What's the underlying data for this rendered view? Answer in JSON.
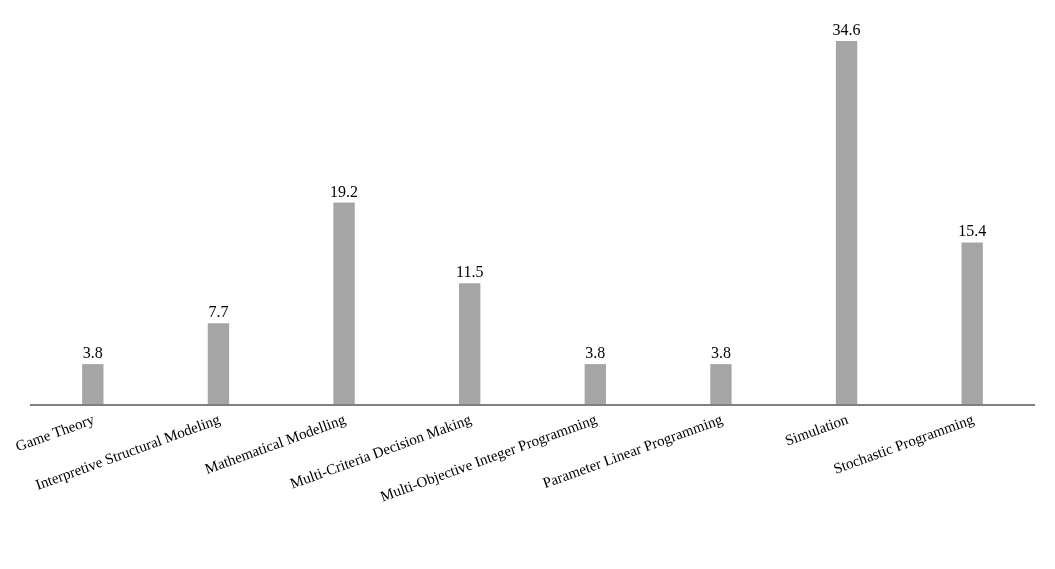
{
  "chart_data": {
    "type": "bar",
    "categories": [
      "Game Theory",
      "Interpretive Structural Modeling",
      "Mathematical Modelling",
      "Multi-Criteria Decision Making",
      "Multi-Objective Integer Programming",
      "Parameter Linear Programming",
      "Simulation",
      "Stochastic Programming"
    ],
    "values": [
      3.8,
      7.7,
      19.2,
      11.5,
      3.8,
      3.8,
      34.6,
      15.4
    ],
    "color": "#a5a5a5",
    "data_labels": true,
    "legend": false,
    "tick_labels": "x"
  }
}
